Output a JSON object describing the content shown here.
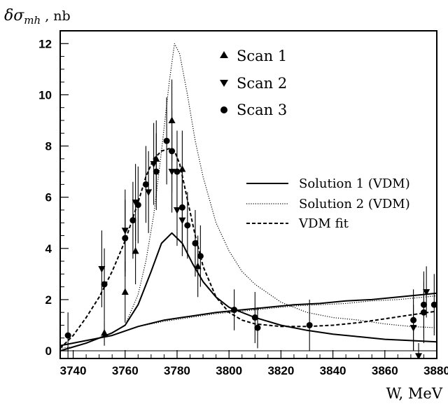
{
  "chart_data": {
    "type": "scatter",
    "title": "",
    "xlabel": "W, MeV",
    "ylabel": "δσmh , nb",
    "ylabel_parts": {
      "symbol": "δσ",
      "subscript": "mh",
      "unit": " , nb"
    },
    "xlim": [
      3735,
      3880
    ],
    "ylim": [
      -0.3,
      12.5
    ],
    "x_ticks": [
      3740,
      3760,
      3780,
      3800,
      3820,
      3840,
      3860,
      3880
    ],
    "y_ticks": [
      0,
      2,
      4,
      6,
      8,
      10,
      12
    ],
    "grid": false,
    "legend_points_placement": "top-center",
    "legend_lines_placement": "center-right",
    "series": [
      {
        "name": "Scan 1",
        "kind": "points",
        "marker": "triangle-up",
        "points": [
          {
            "x": 3752,
            "y": 0.7,
            "err": 0.5
          },
          {
            "x": 3760,
            "y": 2.3,
            "err": 1.2
          },
          {
            "x": 3764,
            "y": 3.9,
            "err": 1.3
          },
          {
            "x": 3772,
            "y": 7.5,
            "err": 1.5
          },
          {
            "x": 3778,
            "y": 9.0,
            "err": 1.6
          },
          {
            "x": 3782,
            "y": 7.1,
            "err": 1.5
          },
          {
            "x": 3788,
            "y": 3.3,
            "err": 1.2
          }
        ]
      },
      {
        "name": "Scan 2",
        "kind": "points",
        "marker": "triangle-down",
        "points": [
          {
            "x": 3751,
            "y": 3.2,
            "err": 1.5
          },
          {
            "x": 3760,
            "y": 4.7,
            "err": 1.6
          },
          {
            "x": 3764,
            "y": 5.8,
            "err": 1.5
          },
          {
            "x": 3769,
            "y": 6.2,
            "err": 1.6
          },
          {
            "x": 3771,
            "y": 7.3,
            "err": 1.6
          },
          {
            "x": 3778,
            "y": 7.0,
            "err": 1.6
          },
          {
            "x": 3780,
            "y": 5.5,
            "err": 1.4
          },
          {
            "x": 3782,
            "y": 5.1,
            "err": 1.4
          },
          {
            "x": 3871,
            "y": 0.9,
            "err": 0.9
          },
          {
            "x": 3873,
            "y": -0.2,
            "err": 0.5
          },
          {
            "x": 3876,
            "y": 2.3,
            "err": 1.0
          }
        ]
      },
      {
        "name": "Scan 3",
        "kind": "points",
        "marker": "circle",
        "points": [
          {
            "x": 3738,
            "y": 0.6,
            "err": 0.9
          },
          {
            "x": 3752,
            "y": 2.6,
            "err": 1.4
          },
          {
            "x": 3760,
            "y": 4.4,
            "err": 1.5
          },
          {
            "x": 3763,
            "y": 5.1,
            "err": 1.5
          },
          {
            "x": 3765,
            "y": 5.7,
            "err": 1.5
          },
          {
            "x": 3768,
            "y": 6.5,
            "err": 1.5
          },
          {
            "x": 3772,
            "y": 7.0,
            "err": 1.5
          },
          {
            "x": 3776,
            "y": 8.2,
            "err": 1.7
          },
          {
            "x": 3778,
            "y": 7.8,
            "err": 1.6
          },
          {
            "x": 3780,
            "y": 7.0,
            "err": 1.6
          },
          {
            "x": 3782,
            "y": 5.6,
            "err": 1.4
          },
          {
            "x": 3784,
            "y": 4.9,
            "err": 1.3
          },
          {
            "x": 3787,
            "y": 4.2,
            "err": 1.3
          },
          {
            "x": 3789,
            "y": 3.7,
            "err": 1.2
          },
          {
            "x": 3802,
            "y": 1.6,
            "err": 0.8
          },
          {
            "x": 3810,
            "y": 1.3,
            "err": 1.0
          },
          {
            "x": 3811,
            "y": 0.9,
            "err": 0.8
          },
          {
            "x": 3831,
            "y": 1.0,
            "err": 1.0
          },
          {
            "x": 3871,
            "y": 1.2,
            "err": 1.2
          },
          {
            "x": 3875,
            "y": 1.8,
            "err": 1.3
          },
          {
            "x": 3875,
            "y": 1.5,
            "err": 1.2
          },
          {
            "x": 3879,
            "y": 1.8,
            "err": 1.2
          }
        ]
      },
      {
        "name": "Solution 1 (VDM)",
        "kind": "line",
        "dash": "solid",
        "x": [
          3735,
          3740,
          3745,
          3750,
          3755,
          3760,
          3765,
          3770,
          3774,
          3778,
          3782,
          3786,
          3790,
          3795,
          3800,
          3810,
          3820,
          3830,
          3840,
          3850,
          3860,
          3870,
          3880
        ],
        "y": [
          0.0,
          0.15,
          0.3,
          0.5,
          0.7,
          1.0,
          1.8,
          3.1,
          4.2,
          4.6,
          4.2,
          3.4,
          2.7,
          2.1,
          1.7,
          1.3,
          1.0,
          0.8,
          0.65,
          0.55,
          0.45,
          0.4,
          0.35
        ]
      },
      {
        "name": "Solution 2 (VDM)",
        "kind": "line",
        "dash": "dotted",
        "x": [
          3735,
          3740,
          3745,
          3750,
          3755,
          3760,
          3765,
          3768,
          3771,
          3774,
          3777,
          3779,
          3781,
          3784,
          3787,
          3790,
          3795,
          3800,
          3805,
          3810,
          3820,
          3830,
          3840,
          3850,
          3860,
          3870,
          3880
        ],
        "y": [
          0.1,
          0.15,
          0.3,
          0.5,
          0.7,
          1.0,
          2.2,
          3.5,
          5.3,
          7.8,
          10.5,
          12.0,
          11.6,
          10.0,
          8.2,
          6.8,
          5.0,
          3.9,
          3.1,
          2.6,
          1.9,
          1.5,
          1.3,
          1.2,
          1.05,
          0.95,
          0.9
        ]
      },
      {
        "name": "VDM fit",
        "kind": "line",
        "dash": "dashed",
        "x": [
          3735,
          3740,
          3745,
          3750,
          3755,
          3760,
          3765,
          3768,
          3771,
          3774,
          3777,
          3779,
          3781,
          3784,
          3787,
          3790,
          3795,
          3800,
          3805,
          3810,
          3820,
          3830,
          3840,
          3850,
          3860,
          3870,
          3880
        ],
        "y": [
          0.1,
          0.6,
          1.3,
          2.1,
          3.1,
          4.3,
          5.8,
          6.8,
          7.5,
          7.8,
          7.9,
          7.8,
          7.3,
          5.9,
          4.5,
          3.3,
          2.1,
          1.5,
          1.2,
          1.05,
          0.95,
          0.95,
          1.0,
          1.1,
          1.25,
          1.4,
          1.55
        ]
      },
      {
        "name": "",
        "kind": "line",
        "dash": "solid",
        "x": [
          3735,
          3745,
          3755,
          3765,
          3775,
          3785,
          3795,
          3805,
          3815,
          3825,
          3835,
          3845,
          3855,
          3865,
          3875,
          3880
        ],
        "y": [
          0.2,
          0.4,
          0.6,
          0.95,
          1.2,
          1.35,
          1.5,
          1.6,
          1.7,
          1.8,
          1.85,
          1.95,
          2.0,
          2.1,
          2.2,
          2.25
        ]
      },
      {
        "name": "",
        "kind": "line",
        "dash": "dotted",
        "x": [
          3735,
          3745,
          3755,
          3765,
          3775,
          3785,
          3795,
          3805,
          3815,
          3825,
          3835,
          3845,
          3855,
          3865,
          3875,
          3880
        ],
        "y": [
          0.2,
          0.4,
          0.6,
          0.95,
          1.15,
          1.3,
          1.45,
          1.55,
          1.65,
          1.75,
          1.8,
          1.85,
          1.95,
          2.0,
          2.1,
          2.15
        ]
      }
    ]
  }
}
